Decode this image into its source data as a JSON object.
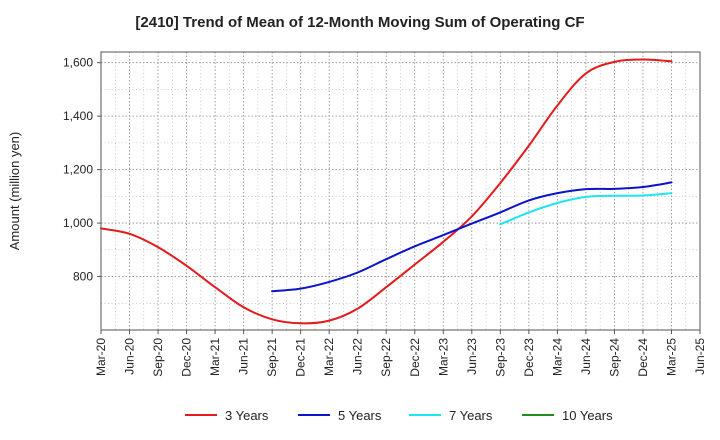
{
  "chart_data": {
    "type": "line",
    "title": "[2410]  Trend of Mean of 12-Month Moving Sum of Operating CF",
    "xlabel": "",
    "ylabel": "Amount (million yen)",
    "ylim": [
      600,
      1640
    ],
    "yticks": [
      800,
      1000,
      1200,
      1400,
      1600
    ],
    "ytick_labels": [
      "800",
      "1,000",
      "1,200",
      "1,400",
      "1,600"
    ],
    "x_categories": [
      "Mar-20",
      "Jun-20",
      "Sep-20",
      "Dec-20",
      "Mar-21",
      "Jun-21",
      "Sep-21",
      "Dec-21",
      "Mar-22",
      "Jun-22",
      "Sep-22",
      "Dec-22",
      "Mar-23",
      "Jun-23",
      "Sep-23",
      "Dec-23",
      "Mar-24",
      "Jun-24",
      "Sep-24",
      "Dec-24",
      "Mar-25",
      "Jun-25"
    ],
    "grid": true,
    "legend_position": "bottom",
    "series": [
      {
        "name": "3 Years",
        "color": "#e31a1c",
        "points": [
          [
            0,
            980
          ],
          [
            1,
            960
          ],
          [
            2,
            910
          ],
          [
            3,
            840
          ],
          [
            4,
            760
          ],
          [
            5,
            685
          ],
          [
            6,
            640
          ],
          [
            7,
            625
          ],
          [
            8,
            635
          ],
          [
            9,
            680
          ],
          [
            10,
            760
          ],
          [
            11,
            845
          ],
          [
            12,
            930
          ],
          [
            13,
            1025
          ],
          [
            14,
            1150
          ],
          [
            15,
            1290
          ],
          [
            16,
            1440
          ],
          [
            17,
            1560
          ],
          [
            18,
            1603
          ],
          [
            19,
            1612
          ],
          [
            20,
            1605
          ]
        ]
      },
      {
        "name": "5 Years",
        "color": "#0a14c8",
        "points": [
          [
            6,
            745
          ],
          [
            7,
            755
          ],
          [
            8,
            780
          ],
          [
            9,
            815
          ],
          [
            10,
            865
          ],
          [
            11,
            913
          ],
          [
            12,
            955
          ],
          [
            13,
            998
          ],
          [
            14,
            1040
          ],
          [
            15,
            1085
          ],
          [
            16,
            1112
          ],
          [
            17,
            1127
          ],
          [
            18,
            1128
          ],
          [
            19,
            1135
          ],
          [
            20,
            1152
          ]
        ]
      },
      {
        "name": "7 Years",
        "color": "#1ee6f0",
        "points": [
          [
            14,
            995
          ],
          [
            15,
            1040
          ],
          [
            16,
            1075
          ],
          [
            17,
            1098
          ],
          [
            18,
            1102
          ],
          [
            19,
            1103
          ],
          [
            20,
            1112
          ]
        ]
      },
      {
        "name": "10 Years",
        "color": "#228b22",
        "points": []
      }
    ]
  }
}
